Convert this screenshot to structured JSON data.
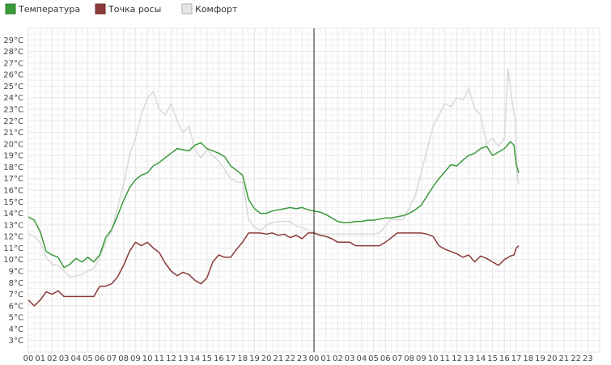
{
  "chart_data": {
    "type": "line",
    "legend": {
      "position": "top-left"
    },
    "y_ticks": [
      "3°C",
      "4°C",
      "5°C",
      "6°C",
      "7°C",
      "8°C",
      "9°C",
      "10°C",
      "11°C",
      "12°C",
      "13°C",
      "14°C",
      "15°C",
      "16°C",
      "17°C",
      "18°C",
      "19°C",
      "20°C",
      "21°C",
      "22°C",
      "23°C",
      "24°C",
      "25°C",
      "26°C",
      "27°C",
      "28°C",
      "29°C"
    ],
    "x_ticks": [
      "00",
      "01",
      "02",
      "03",
      "04",
      "05",
      "06",
      "07",
      "08",
      "09",
      "10",
      "11",
      "12",
      "13",
      "14",
      "15",
      "16",
      "17",
      "18",
      "19",
      "20",
      "21",
      "22",
      "23",
      "00",
      "01",
      "02",
      "03",
      "04",
      "05",
      "06",
      "07",
      "08",
      "09",
      "10",
      "11",
      "12",
      "13",
      "14",
      "15",
      "16",
      "17",
      "18",
      "19",
      "20",
      "21",
      "22",
      "23"
    ],
    "ylim": [
      2,
      30
    ],
    "xlim": [
      0,
      48
    ],
    "grid": true,
    "day_separator_hour": 24,
    "series": [
      {
        "name": "Температура",
        "color": "#3a9a3a",
        "points": [
          [
            0,
            13.7
          ],
          [
            0.5,
            13.4
          ],
          [
            1,
            12.4
          ],
          [
            1.5,
            10.7
          ],
          [
            2,
            10.4
          ],
          [
            2.5,
            10.2
          ],
          [
            3,
            9.3
          ],
          [
            3.5,
            9.6
          ],
          [
            4,
            10.1
          ],
          [
            4.5,
            9.8
          ],
          [
            5,
            10.2
          ],
          [
            5.5,
            9.8
          ],
          [
            6,
            10.4
          ],
          [
            6.5,
            11.9
          ],
          [
            7,
            12.6
          ],
          [
            7.5,
            13.8
          ],
          [
            8,
            15.1
          ],
          [
            8.5,
            16.2
          ],
          [
            9,
            16.9
          ],
          [
            9.5,
            17.3
          ],
          [
            10,
            17.5
          ],
          [
            10.5,
            18.1
          ],
          [
            11,
            18.4
          ],
          [
            11.5,
            18.8
          ],
          [
            12,
            19.2
          ],
          [
            12.5,
            19.6
          ],
          [
            13,
            19.5
          ],
          [
            13.5,
            19.4
          ],
          [
            14,
            19.9
          ],
          [
            14.5,
            20.1
          ],
          [
            15,
            19.6
          ],
          [
            15.5,
            19.4
          ],
          [
            16,
            19.2
          ],
          [
            16.5,
            18.9
          ],
          [
            17,
            18.1
          ],
          [
            17.5,
            17.7
          ],
          [
            18,
            17.3
          ],
          [
            18.5,
            15.2
          ],
          [
            19,
            14.4
          ],
          [
            19.5,
            14.0
          ],
          [
            20,
            14.0
          ],
          [
            20.5,
            14.2
          ],
          [
            21,
            14.3
          ],
          [
            21.5,
            14.4
          ],
          [
            22,
            14.5
          ],
          [
            22.5,
            14.4
          ],
          [
            23,
            14.5
          ],
          [
            23.5,
            14.3
          ],
          [
            24,
            14.2
          ],
          [
            24.5,
            14.1
          ],
          [
            25,
            13.9
          ],
          [
            25.5,
            13.6
          ],
          [
            26,
            13.3
          ],
          [
            26.5,
            13.2
          ],
          [
            27,
            13.2
          ],
          [
            27.5,
            13.3
          ],
          [
            28,
            13.3
          ],
          [
            28.5,
            13.4
          ],
          [
            29,
            13.4
          ],
          [
            29.5,
            13.5
          ],
          [
            30,
            13.6
          ],
          [
            30.5,
            13.6
          ],
          [
            31,
            13.7
          ],
          [
            31.5,
            13.8
          ],
          [
            32,
            14.0
          ],
          [
            32.5,
            14.3
          ],
          [
            33,
            14.7
          ],
          [
            33.5,
            15.5
          ],
          [
            34,
            16.3
          ],
          [
            34.5,
            17.0
          ],
          [
            35,
            17.6
          ],
          [
            35.5,
            18.2
          ],
          [
            36,
            18.1
          ],
          [
            36.5,
            18.6
          ],
          [
            37,
            19.0
          ],
          [
            37.5,
            19.2
          ],
          [
            38,
            19.6
          ],
          [
            38.5,
            19.8
          ],
          [
            39,
            19.0
          ],
          [
            39.5,
            19.3
          ],
          [
            40,
            19.6
          ],
          [
            40.5,
            20.2
          ],
          [
            40.8,
            19.9
          ],
          [
            41,
            18.2
          ],
          [
            41.2,
            17.5
          ]
        ]
      },
      {
        "name": "Точка росы",
        "color": "#8b3a3a",
        "points": [
          [
            0,
            6.5
          ],
          [
            0.5,
            6.0
          ],
          [
            1,
            6.5
          ],
          [
            1.5,
            7.2
          ],
          [
            2,
            7.0
          ],
          [
            2.5,
            7.3
          ],
          [
            3,
            6.8
          ],
          [
            3.5,
            6.8
          ],
          [
            4,
            6.8
          ],
          [
            4.5,
            6.8
          ],
          [
            5,
            6.8
          ],
          [
            5.5,
            6.8
          ],
          [
            6,
            7.7
          ],
          [
            6.5,
            7.7
          ],
          [
            7,
            7.9
          ],
          [
            7.5,
            8.5
          ],
          [
            8,
            9.5
          ],
          [
            8.5,
            10.7
          ],
          [
            9,
            11.5
          ],
          [
            9.5,
            11.2
          ],
          [
            10,
            11.5
          ],
          [
            10.5,
            11.0
          ],
          [
            11,
            10.6
          ],
          [
            11.5,
            9.7
          ],
          [
            12,
            9.0
          ],
          [
            12.5,
            8.6
          ],
          [
            13,
            8.9
          ],
          [
            13.5,
            8.7
          ],
          [
            14,
            8.2
          ],
          [
            14.5,
            7.9
          ],
          [
            15,
            8.4
          ],
          [
            15.5,
            9.8
          ],
          [
            16,
            10.4
          ],
          [
            16.5,
            10.2
          ],
          [
            17,
            10.2
          ],
          [
            17.5,
            10.9
          ],
          [
            18,
            11.5
          ],
          [
            18.5,
            12.3
          ],
          [
            19,
            12.3
          ],
          [
            19.5,
            12.3
          ],
          [
            20,
            12.2
          ],
          [
            20.5,
            12.3
          ],
          [
            21,
            12.1
          ],
          [
            21.5,
            12.2
          ],
          [
            22,
            11.9
          ],
          [
            22.5,
            12.1
          ],
          [
            23,
            11.8
          ],
          [
            23.5,
            12.3
          ],
          [
            24,
            12.3
          ],
          [
            24.5,
            12.1
          ],
          [
            25,
            12.0
          ],
          [
            25.5,
            11.8
          ],
          [
            26,
            11.5
          ],
          [
            26.5,
            11.5
          ],
          [
            27,
            11.5
          ],
          [
            27.5,
            11.2
          ],
          [
            28,
            11.2
          ],
          [
            28.5,
            11.2
          ],
          [
            29,
            11.2
          ],
          [
            29.5,
            11.2
          ],
          [
            30,
            11.5
          ],
          [
            30.5,
            11.9
          ],
          [
            31,
            12.3
          ],
          [
            31.5,
            12.3
          ],
          [
            32,
            12.3
          ],
          [
            32.5,
            12.3
          ],
          [
            33,
            12.3
          ],
          [
            33.5,
            12.2
          ],
          [
            34,
            12.0
          ],
          [
            34.5,
            11.2
          ],
          [
            35,
            10.9
          ],
          [
            35.5,
            10.7
          ],
          [
            36,
            10.5
          ],
          [
            36.5,
            10.2
          ],
          [
            37,
            10.4
          ],
          [
            37.5,
            9.8
          ],
          [
            38,
            10.3
          ],
          [
            38.5,
            10.1
          ],
          [
            39,
            9.8
          ],
          [
            39.5,
            9.5
          ],
          [
            40,
            10.0
          ],
          [
            40.5,
            10.3
          ],
          [
            40.8,
            10.4
          ],
          [
            41,
            11.0
          ],
          [
            41.2,
            11.2
          ]
        ]
      },
      {
        "name": "Комфорт",
        "color": "#d9d9d9",
        "points": [
          [
            0,
            12.3
          ],
          [
            0.5,
            12.0
          ],
          [
            1,
            11.5
          ],
          [
            1.5,
            10.2
          ],
          [
            2,
            9.6
          ],
          [
            2.5,
            9.5
          ],
          [
            3,
            9.0
          ],
          [
            3.5,
            8.5
          ],
          [
            4,
            8.6
          ],
          [
            4.5,
            8.7
          ],
          [
            5,
            9.0
          ],
          [
            5.5,
            9.2
          ],
          [
            6,
            10.2
          ],
          [
            6.5,
            11.5
          ],
          [
            7,
            12.5
          ],
          [
            7.5,
            14.5
          ],
          [
            8,
            16.5
          ],
          [
            8.5,
            19.0
          ],
          [
            9,
            20.5
          ],
          [
            9.5,
            22.5
          ],
          [
            10,
            24.0
          ],
          [
            10.5,
            24.5
          ],
          [
            11,
            23.0
          ],
          [
            11.5,
            22.5
          ],
          [
            12,
            23.5
          ],
          [
            12.5,
            22.0
          ],
          [
            13,
            21.0
          ],
          [
            13.5,
            21.5
          ],
          [
            14,
            19.5
          ],
          [
            14.5,
            18.8
          ],
          [
            15,
            19.5
          ],
          [
            15.5,
            19.0
          ],
          [
            16,
            18.5
          ],
          [
            16.5,
            17.8
          ],
          [
            17,
            17.0
          ],
          [
            17.5,
            16.7
          ],
          [
            18,
            16.7
          ],
          [
            18.5,
            13.5
          ],
          [
            19,
            12.8
          ],
          [
            19.5,
            12.5
          ],
          [
            20,
            13.0
          ],
          [
            20.5,
            13.2
          ],
          [
            21,
            13.3
          ],
          [
            21.5,
            13.3
          ],
          [
            22,
            13.3
          ],
          [
            22.5,
            12.9
          ],
          [
            23,
            12.8
          ],
          [
            23.5,
            12.5
          ],
          [
            24,
            12.4
          ],
          [
            24.5,
            12.2
          ],
          [
            25,
            12.2
          ],
          [
            25.5,
            12.2
          ],
          [
            26,
            12.2
          ],
          [
            26.5,
            12.2
          ],
          [
            27,
            12.2
          ],
          [
            27.5,
            12.2
          ],
          [
            28,
            12.2
          ],
          [
            28.5,
            12.2
          ],
          [
            29,
            12.2
          ],
          [
            29.5,
            12.3
          ],
          [
            30,
            12.9
          ],
          [
            30.5,
            13.5
          ],
          [
            31,
            13.4
          ],
          [
            31.5,
            13.5
          ],
          [
            32,
            14.5
          ],
          [
            32.5,
            15.5
          ],
          [
            33,
            17.5
          ],
          [
            33.5,
            19.5
          ],
          [
            34,
            21.5
          ],
          [
            34.5,
            22.5
          ],
          [
            35,
            23.5
          ],
          [
            35.5,
            23.2
          ],
          [
            36,
            24.0
          ],
          [
            36.5,
            23.8
          ],
          [
            37,
            24.8
          ],
          [
            37.5,
            23.0
          ],
          [
            38,
            22.5
          ],
          [
            38.5,
            20.0
          ],
          [
            39,
            20.5
          ],
          [
            39.5,
            19.8
          ],
          [
            40,
            20.5
          ],
          [
            40.3,
            26.5
          ],
          [
            40.6,
            24.0
          ],
          [
            40.9,
            22.0
          ],
          [
            41.1,
            17.0
          ],
          [
            41.2,
            16.5
          ]
        ]
      }
    ]
  }
}
